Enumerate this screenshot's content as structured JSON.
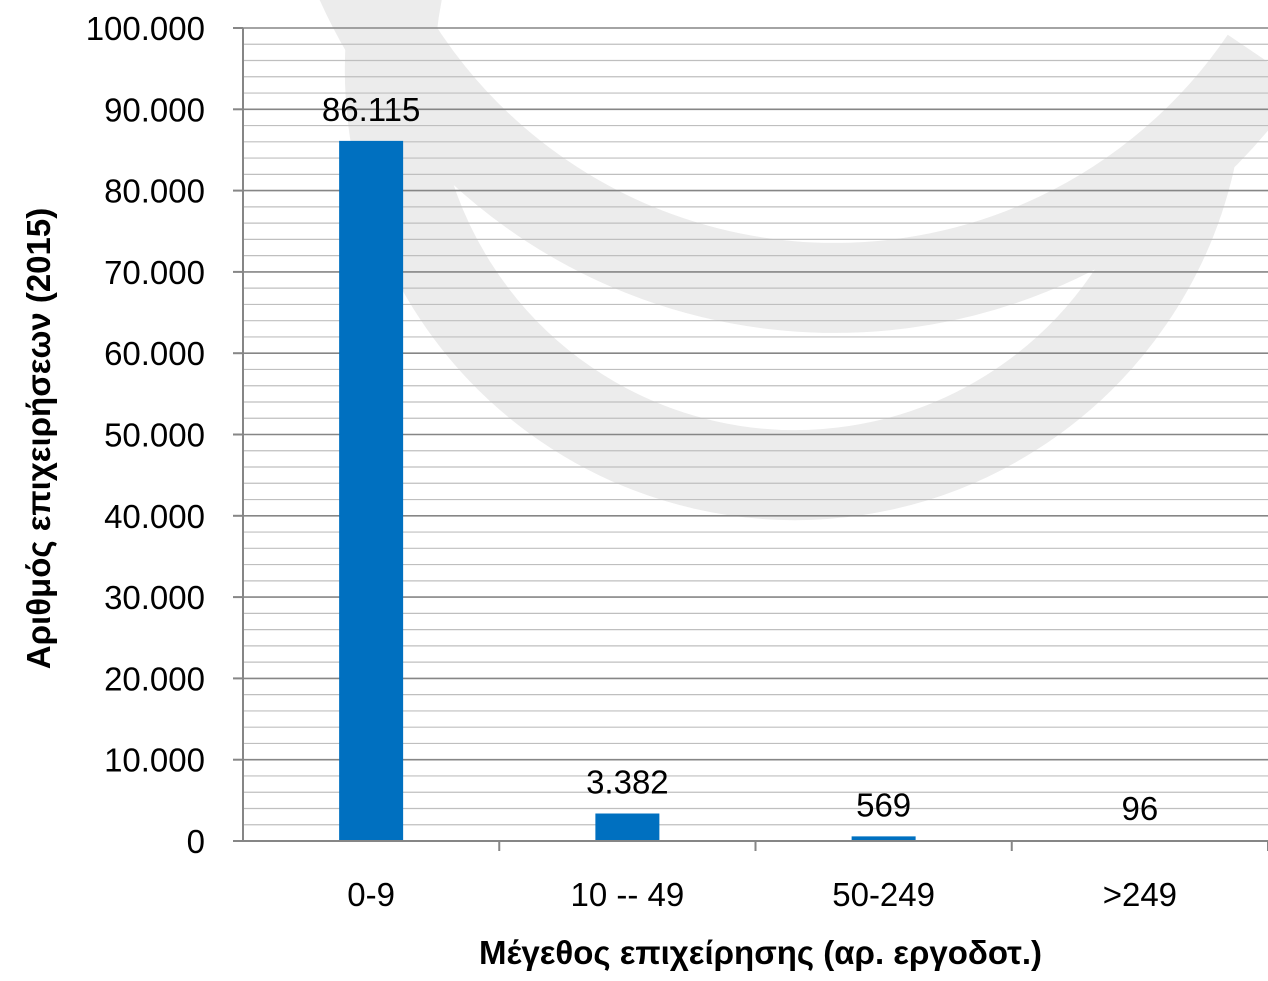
{
  "chart_data": {
    "type": "bar",
    "categories": [
      "0-9",
      "10 -- 49",
      "50-249",
      ">249"
    ],
    "values": [
      86115,
      3382,
      569,
      96
    ],
    "data_labels": [
      "86.115",
      "3.382",
      "569",
      "96"
    ],
    "title": "",
    "xlabel": "Μέγεθος επιχείρησης (αρ. εργοδοτ.)",
    "ylabel": "Αριθμός επιχειρήσεων (2015)",
    "ylim": [
      0,
      100000
    ],
    "y_ticks": [
      0,
      10000,
      20000,
      30000,
      40000,
      50000,
      60000,
      70000,
      80000,
      90000,
      100000
    ],
    "y_tick_labels": [
      "0",
      "10.000",
      "20.000",
      "30.000",
      "40.000",
      "50.000",
      "60.000",
      "70.000",
      "80.000",
      "90.000",
      "100.000"
    ],
    "minor_grid_step": 2000,
    "grid": true,
    "legend": "none",
    "colors": {
      "bar": "#0070C0",
      "major_grid": "#868686",
      "minor_grid": "#BFBFBF",
      "axis": "#868686",
      "watermark": "#ECECEC"
    }
  }
}
